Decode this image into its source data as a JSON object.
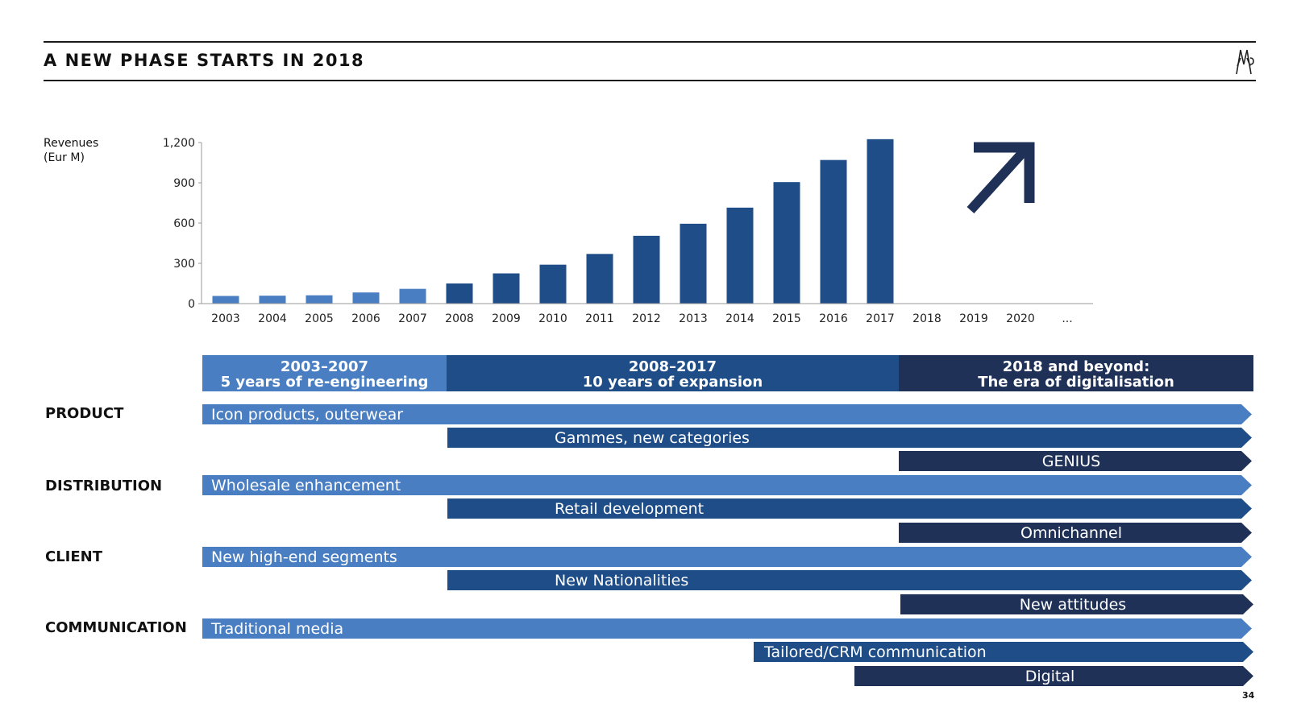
{
  "title": "A NEW PHASE STARTS IN 2018",
  "page_number": "34",
  "colors": {
    "light": "#4a7ec2",
    "mid": "#1e4d88",
    "dark": "#1f3156"
  },
  "chart_data": {
    "type": "bar",
    "ylabel_line1": "Revenues",
    "ylabel_line2": "(Eur M)",
    "ylim": [
      0,
      1200
    ],
    "yticks": [
      "0",
      "300",
      "600",
      "900",
      "1,200"
    ],
    "categories": [
      "2003",
      "2004",
      "2005",
      "2006",
      "2007",
      "2008",
      "2009",
      "2010",
      "2011",
      "2012",
      "2013",
      "2014",
      "2015",
      "2016",
      "2017",
      "2018",
      "2019",
      "2020",
      "..."
    ],
    "values": [
      57,
      59,
      62,
      83,
      110,
      150,
      225,
      290,
      370,
      505,
      595,
      715,
      905,
      1070,
      1225,
      null,
      null,
      null,
      null
    ],
    "bar_color_groups": [
      "light",
      "light",
      "light",
      "light",
      "light",
      "mid",
      "mid",
      "mid",
      "mid",
      "mid",
      "mid",
      "mid",
      "mid",
      "mid",
      "mid"
    ],
    "arrow": "up-right-arrow"
  },
  "eras": [
    {
      "line1": "2003–2007",
      "line2": "5 years of re-engineering"
    },
    {
      "line1": "2008–2017",
      "line2": "10 years of expansion"
    },
    {
      "line1": "2018 and beyond:",
      "line2": "The era of digitalisation"
    }
  ],
  "categories": [
    "PRODUCT",
    "DISTRIBUTION",
    "CLIENT",
    "COMMUNICATION"
  ],
  "bars": {
    "product": [
      "Icon products, outerwear",
      "Gammes, new categories",
      "GENIUS"
    ],
    "distribution": [
      "Wholesale enhancement",
      "Retail development",
      "Omnichannel"
    ],
    "client": [
      "New high-end segments",
      "New Nationalities",
      "New attitudes"
    ],
    "communication": [
      "Traditional media",
      "Tailored/CRM communication",
      "Digital"
    ]
  }
}
